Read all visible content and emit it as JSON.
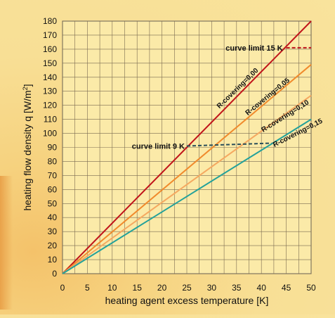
{
  "chart_data": {
    "type": "line",
    "xlabel": "heating agent excess temperature  [K]",
    "ylabel": "heating flow density q  [W/m²]",
    "xlim": [
      0,
      50
    ],
    "ylim": [
      0,
      180
    ],
    "x_ticks": [
      0,
      5,
      10,
      15,
      20,
      25,
      30,
      35,
      40,
      45,
      50
    ],
    "y_ticks": [
      0,
      10,
      20,
      30,
      40,
      50,
      60,
      70,
      80,
      90,
      100,
      110,
      120,
      130,
      140,
      150,
      160,
      170,
      180
    ],
    "grid": true,
    "series": [
      {
        "name": "R-covering=0,00",
        "color": "#c0141a",
        "x": [
          0,
          50
        ],
        "y": [
          0,
          180
        ]
      },
      {
        "name": "R-covering=0,05",
        "color": "#f08a2c",
        "x": [
          0,
          50
        ],
        "y": [
          0,
          149
        ]
      },
      {
        "name": "R-covering=0,10",
        "color": "#f5a860",
        "x": [
          0,
          50
        ],
        "y": [
          0,
          127
        ]
      },
      {
        "name": "R-covering=0,15",
        "color": "#23a19a",
        "x": [
          0,
          50
        ],
        "y": [
          0,
          110
        ]
      }
    ],
    "limits": [
      {
        "label": "curve limit 15 K",
        "color": "#c0141a",
        "x": [
          45,
          50
        ],
        "y": [
          161,
          161
        ]
      },
      {
        "label": "curve limit 9 K",
        "color": "#2a4e5a",
        "x": [
          25,
          42
        ],
        "y": [
          91,
          93
        ]
      }
    ]
  }
}
